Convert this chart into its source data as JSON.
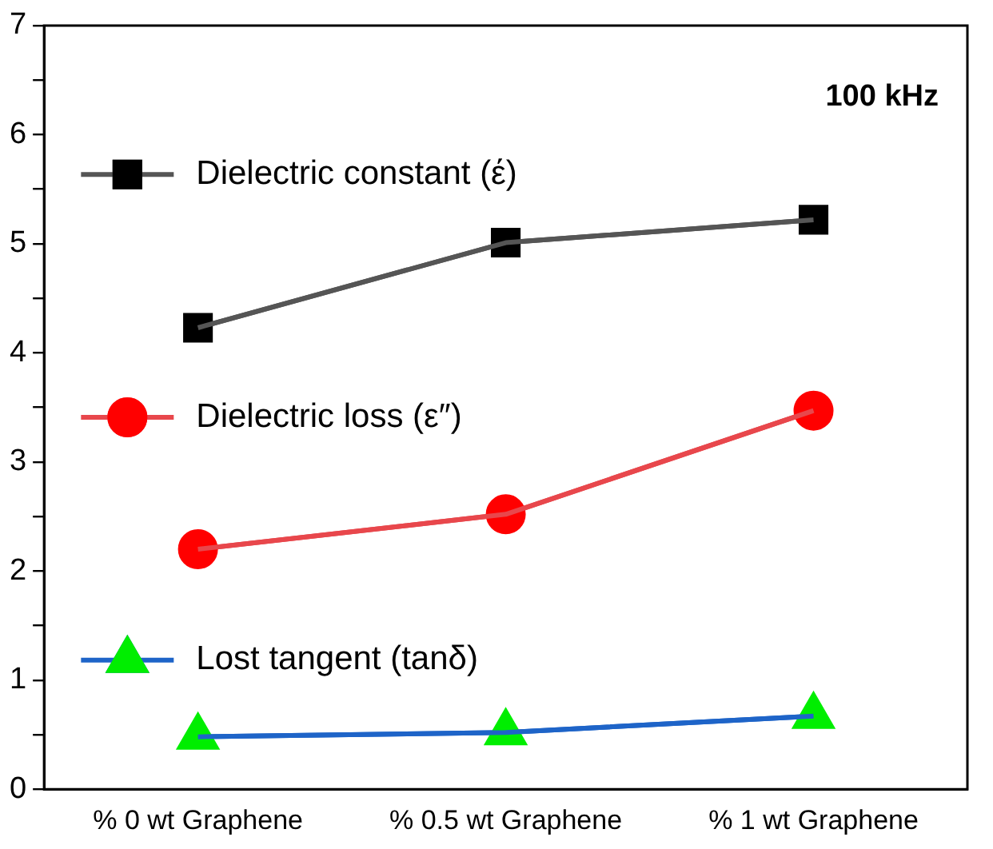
{
  "chart_data": {
    "type": "line",
    "categories": [
      "% 0 wt Graphene",
      "% 0.5 wt Graphene",
      "% 1 wt Graphene"
    ],
    "series": [
      {
        "name": "Dielectric constant (έ)",
        "color": "#555555",
        "colors": [
          "#000000",
          "#000000",
          "#000000"
        ],
        "marker": "square",
        "values": [
          4.23,
          5.01,
          5.22
        ]
      },
      {
        "name": "Dielectric loss (ε″)",
        "color": "#e8474c",
        "colors": [
          "#ff0000",
          "#ff0000",
          "#ff0000"
        ],
        "marker": "circle",
        "values": [
          2.2,
          2.52,
          3.47
        ]
      },
      {
        "name": "Lost tangent (tanδ)",
        "color": "#1e64c8",
        "colors": [
          "#00ee00",
          "#00ee00",
          "#00ee00"
        ],
        "marker": "triangle",
        "values": [
          0.48,
          0.52,
          0.67
        ]
      }
    ],
    "ylim": [
      0,
      7
    ],
    "yticks": [
      0,
      {
        "value": 0.5,
        "label": null
      },
      1,
      {
        "value": 1.5,
        "label": null
      },
      2,
      {
        "value": 2.5,
        "label": null
      },
      3,
      {
        "value": 3.5,
        "label": null
      },
      4,
      {
        "value": 4.5,
        "label": null
      },
      5,
      {
        "value": 5.5,
        "label": null
      },
      6,
      {
        "value": 6.5,
        "label": null
      },
      7
    ],
    "annotations": [
      "100 kHz"
    ],
    "grid": false,
    "legend": "left",
    "line_style": "solid"
  }
}
